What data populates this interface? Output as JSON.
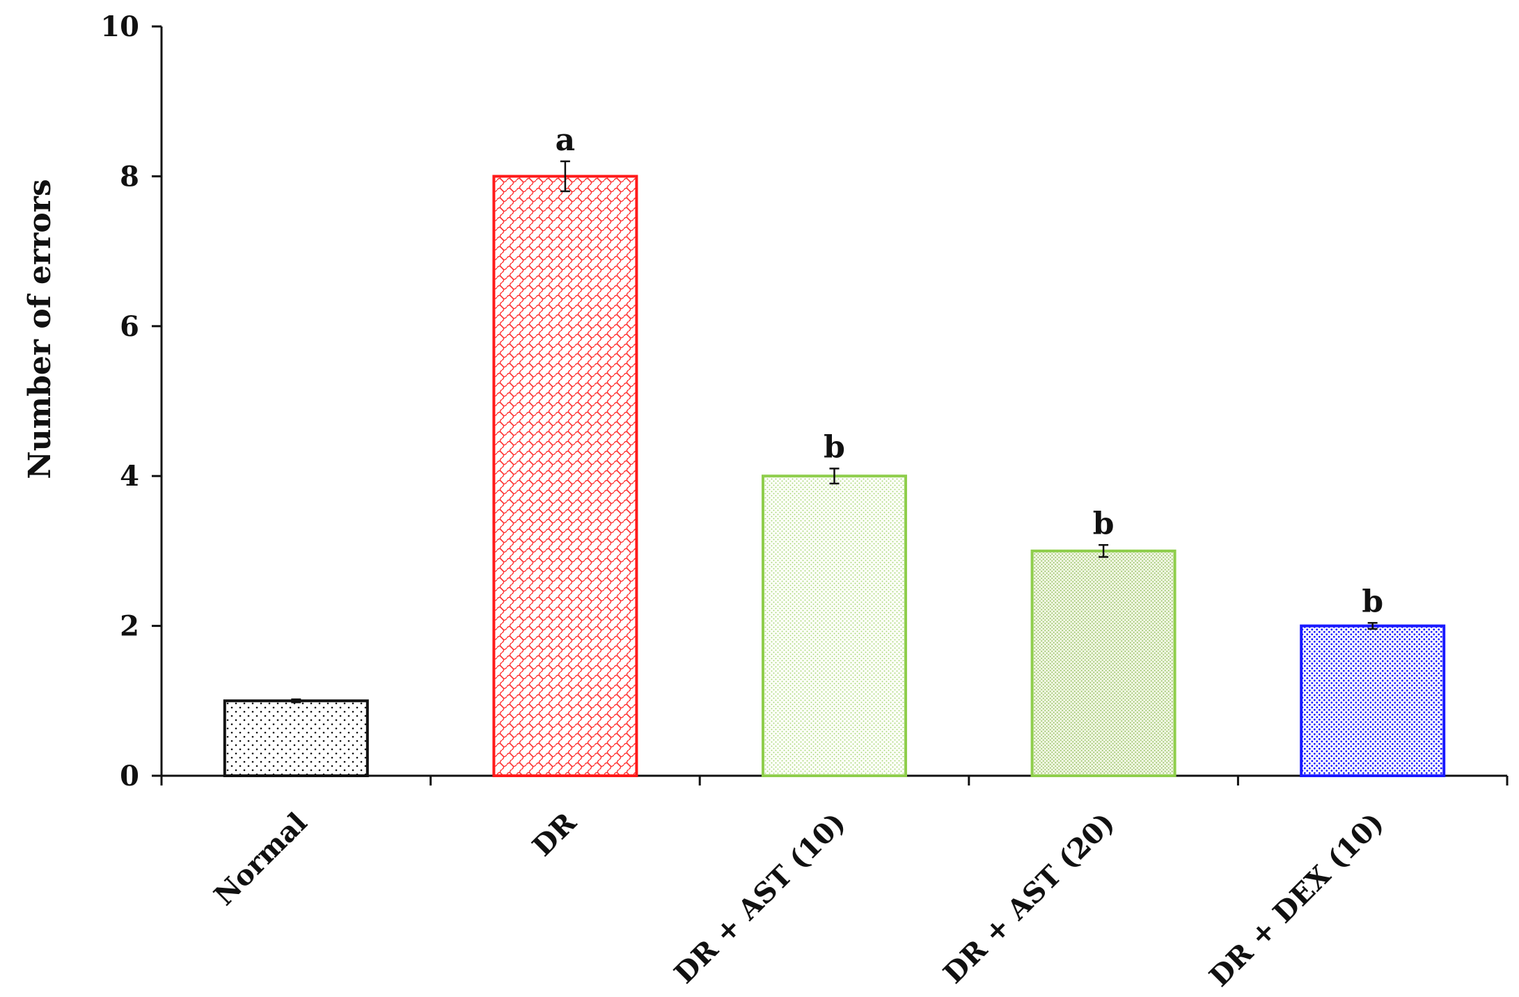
{
  "chart_data": {
    "type": "bar",
    "title": "",
    "xlabel": "",
    "ylabel": "Number of errors",
    "ylim": [
      0,
      10
    ],
    "yticks": [
      0,
      2,
      4,
      6,
      8,
      10
    ],
    "grid": false,
    "legend": "none",
    "categories": [
      "Normal",
      "DR",
      "DR + AST (10)",
      "DR + AST (20)",
      "DR + DEX (10)"
    ],
    "values": [
      1,
      8,
      4,
      3,
      2
    ],
    "errors": [
      0.02,
      0.2,
      0.1,
      0.08,
      0.04
    ],
    "significance_labels": [
      "",
      "a",
      "b",
      "b",
      "b"
    ],
    "bar_colors": [
      "#111111",
      "#ff1a1a",
      "#8fce4c",
      "#8fce4c",
      "#1a1aff"
    ],
    "bar_patterns": [
      "dots-sparse",
      "crosshatch-wave",
      "dots-fine",
      "dots-dense",
      "dots-medium"
    ]
  }
}
